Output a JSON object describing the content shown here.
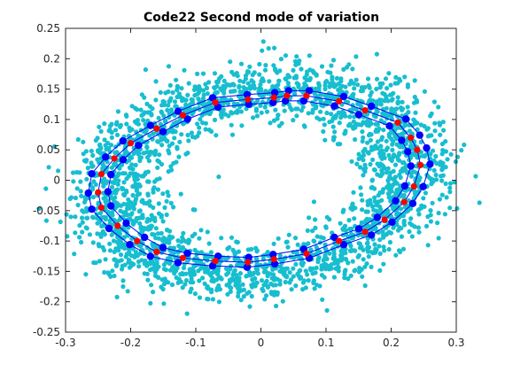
{
  "figure": {
    "background": "#ffffff"
  },
  "chart_data": {
    "type": "scatter",
    "title": "Code22 Second mode of variation",
    "xlabel": "",
    "ylabel": "",
    "xlim": [
      -0.3,
      0.3
    ],
    "ylim": [
      -0.25,
      0.25
    ],
    "xticks": [
      -0.3,
      -0.2,
      -0.1,
      0,
      0.1,
      0.2,
      0.3
    ],
    "xtick_labels": [
      "-0.3",
      "-0.2",
      "-0.1",
      "0",
      "0.1",
      "0.2",
      "0.3"
    ],
    "yticks": [
      -0.25,
      -0.2,
      -0.15,
      -0.1,
      -0.05,
      0,
      0.05,
      0.1,
      0.15,
      0.2,
      0.25
    ],
    "ytick_labels": [
      "-0.25",
      "-0.2",
      "-0.15",
      "-0.1",
      "-0.05",
      "0",
      "0.05",
      "0.1",
      "0.15",
      "0.2",
      "0.25"
    ],
    "grid": false,
    "legend": "none",
    "series": [
      {
        "role": "point-cloud",
        "color": "#17becf",
        "marker": "filled-circle",
        "shape": "elliptical ring",
        "center": [
          0.0,
          0.0
        ],
        "outer_x_extent": [
          -0.29,
          0.29
        ],
        "outer_y_extent": [
          -0.2,
          0.2
        ],
        "inner_x_extent": [
          -0.19,
          0.17
        ],
        "inner_y_extent": [
          -0.1,
          0.1
        ]
      },
      {
        "role": "mean-shape-contour",
        "color": "#ff0000",
        "line_color": "#0000ff",
        "marker": "filled-circle",
        "points": [
          [
            0.07,
            0.139
          ],
          [
            0.04,
            0.139
          ],
          [
            0.02,
            0.136
          ],
          [
            -0.02,
            0.133
          ],
          [
            -0.07,
            0.128
          ],
          [
            -0.12,
            0.107
          ],
          [
            -0.16,
            0.085
          ],
          [
            -0.2,
            0.061
          ],
          [
            -0.225,
            0.036
          ],
          [
            -0.245,
            0.01
          ],
          [
            -0.25,
            -0.02
          ],
          [
            -0.245,
            -0.045
          ],
          [
            -0.22,
            -0.075
          ],
          [
            -0.19,
            -0.1
          ],
          [
            -0.16,
            -0.118
          ],
          [
            -0.12,
            -0.128
          ],
          [
            -0.07,
            -0.133
          ],
          [
            -0.02,
            -0.135
          ],
          [
            0.02,
            -0.13
          ],
          [
            0.07,
            -0.121
          ],
          [
            0.12,
            -0.1
          ],
          [
            0.16,
            -0.085
          ],
          [
            0.19,
            -0.065
          ],
          [
            0.22,
            -0.036
          ],
          [
            0.235,
            -0.01
          ],
          [
            0.245,
            0.025
          ],
          [
            0.24,
            0.05
          ],
          [
            0.23,
            0.07
          ],
          [
            0.21,
            0.095
          ],
          [
            0.16,
            0.115
          ],
          [
            0.12,
            0.13
          ]
        ]
      },
      {
        "role": "variation-outer",
        "color": "#0000ff",
        "marker": "filled-circle",
        "scale": 1.06
      },
      {
        "role": "variation-inner",
        "color": "#0000ff",
        "marker": "filled-circle",
        "scale": 0.94
      }
    ]
  }
}
